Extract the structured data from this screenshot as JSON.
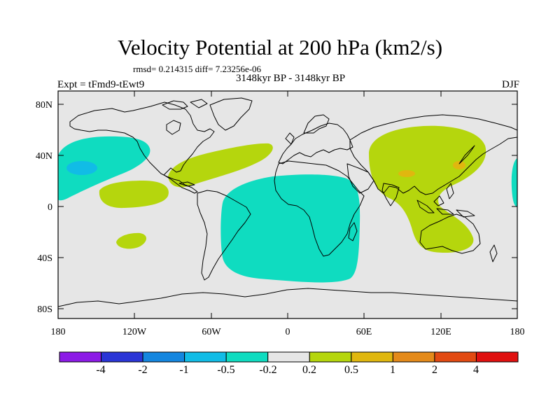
{
  "title": "Velocity Potential at 200 hPa (km2/s)",
  "stats_line": "rmsd= 0.214315  diff= 7.23256e-06",
  "period_label": "3148kyr BP - 3148kyr BP",
  "experiment_label": "Expt = tFmd9-tEwt9",
  "season_label": "DJF",
  "map": {
    "background_color": "#e6e6e6",
    "lon_ticks": [
      "180",
      "120W",
      "60W",
      "0",
      "60E",
      "120E",
      "180"
    ],
    "lat_ticks": [
      "80N",
      "40N",
      "0",
      "40S",
      "80S"
    ]
  },
  "colorbar": {
    "colors": [
      "#8c1ae6",
      "#2a35d6",
      "#1486df",
      "#11bce6",
      "#0fdcc0",
      "#e6e6e6",
      "#b5d60d",
      "#e0b70f",
      "#e48a1a",
      "#e24a12",
      "#e0100f"
    ],
    "labels": [
      "-4",
      "-2",
      "-1",
      "-0.5",
      "-0.2",
      "0.2",
      "0.5",
      "1",
      "2",
      "4"
    ]
  }
}
